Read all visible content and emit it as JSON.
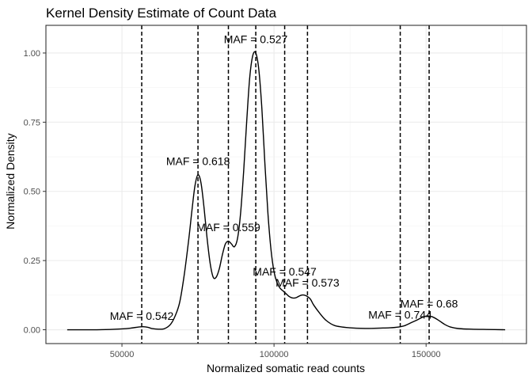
{
  "chart_data": {
    "type": "line",
    "title": "Kernel Density Estimate of Count Data",
    "xlabel": "Normalized somatic read counts",
    "ylabel": "Normalized Density",
    "xlim": [
      25000,
      183000
    ],
    "ylim": [
      -0.05,
      1.1
    ],
    "x_ticks": [
      50000,
      100000,
      150000
    ],
    "x_tick_labels": [
      "50000",
      "100000",
      "150000"
    ],
    "y_ticks": [
      0.0,
      0.25,
      0.5,
      0.75,
      1.0
    ],
    "y_tick_labels": [
      "0.00",
      "0.25",
      "0.50",
      "0.75",
      "1.00"
    ],
    "grid": true,
    "series": [
      {
        "color": "#000000",
        "x": [
          32000,
          40000,
          46000,
          50000,
          53000,
          55500,
          57000,
          58500,
          60000,
          62000,
          64000,
          66000,
          67500,
          69000,
          70500,
          72000,
          73000,
          74000,
          75000,
          76000,
          77000,
          78000,
          79000,
          80000,
          81000,
          82000,
          83000,
          84000,
          85000,
          86000,
          87000,
          88000,
          89000,
          90000,
          91000,
          92000,
          93000,
          94000,
          95000,
          96000,
          97000,
          98000,
          99000,
          100000,
          101000,
          102000,
          103000,
          104000,
          105000,
          106000,
          107000,
          108000,
          109000,
          110000,
          111000,
          112000,
          113000,
          115000,
          117000,
          120000,
          125000,
          130000,
          135000,
          138000,
          141000,
          143000,
          145000,
          147000,
          149000,
          150500,
          152000,
          154000,
          156000,
          158000,
          161000,
          165000,
          170000,
          176000
        ],
        "y": [
          0.0,
          0.0,
          0.001,
          0.003,
          0.006,
          0.01,
          0.011,
          0.009,
          0.004,
          0.002,
          0.004,
          0.02,
          0.05,
          0.1,
          0.2,
          0.33,
          0.43,
          0.52,
          0.56,
          0.53,
          0.44,
          0.33,
          0.24,
          0.19,
          0.19,
          0.22,
          0.27,
          0.31,
          0.32,
          0.31,
          0.3,
          0.33,
          0.42,
          0.57,
          0.75,
          0.91,
          0.99,
          1.0,
          0.94,
          0.8,
          0.6,
          0.42,
          0.29,
          0.21,
          0.17,
          0.15,
          0.14,
          0.13,
          0.12,
          0.115,
          0.115,
          0.12,
          0.125,
          0.125,
          0.12,
          0.11,
          0.09,
          0.06,
          0.035,
          0.015,
          0.007,
          0.005,
          0.006,
          0.007,
          0.01,
          0.015,
          0.025,
          0.035,
          0.046,
          0.05,
          0.047,
          0.035,
          0.02,
          0.01,
          0.004,
          0.002,
          0.001,
          0.0
        ]
      }
    ],
    "vlines": [
      56500,
      75000,
      85000,
      94000,
      103500,
      111000,
      141500,
      151000
    ],
    "annotations": [
      {
        "text": "MAF = 0.542",
        "x": 56500,
        "y": 0.05
      },
      {
        "text": "MAF = 0.618",
        "x": 75000,
        "y": 0.61
      },
      {
        "text": "MAF = 0.559",
        "x": 85000,
        "y": 0.37
      },
      {
        "text": "MAF = 0.527",
        "x": 94000,
        "y": 1.05
      },
      {
        "text": "MAF = 0.547",
        "x": 103500,
        "y": 0.21
      },
      {
        "text": "MAF = 0.573",
        "x": 111000,
        "y": 0.17
      },
      {
        "text": "MAF = 0.744",
        "x": 141500,
        "y": 0.055
      },
      {
        "text": "MAF = 0.68",
        "x": 151000,
        "y": 0.095
      }
    ]
  }
}
